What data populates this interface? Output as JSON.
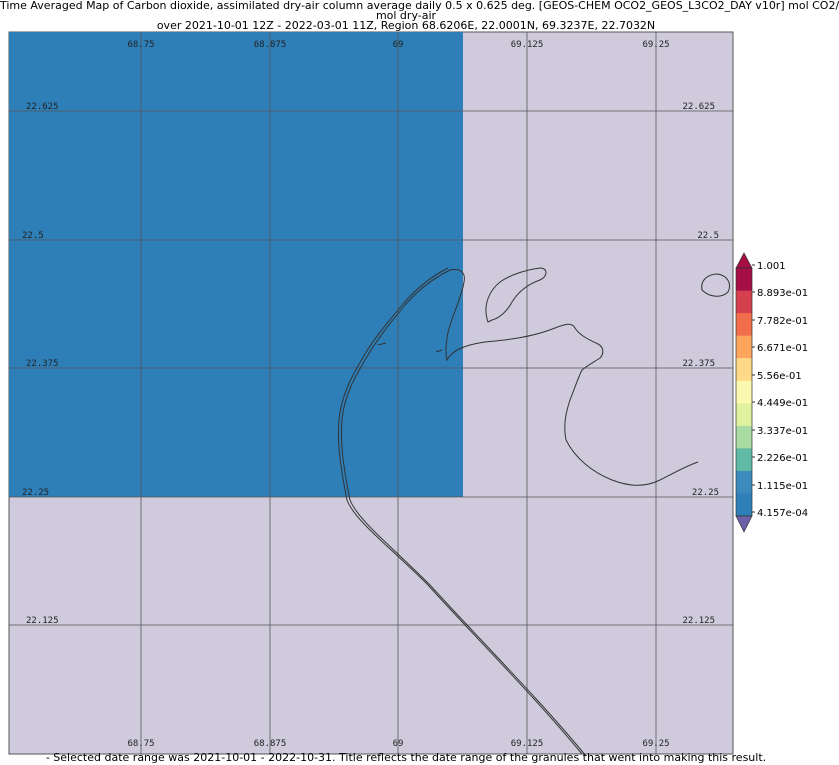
{
  "title": {
    "line1": "Time Averaged Map of Carbon dioxide, assimilated dry-air column average daily 0.5 x 0.625 deg. [GEOS-CHEM OCO2_GEOS_L3CO2_DAY v10r] mol CO2/",
    "line2": "mol dry-air",
    "line3": "over 2021-10-01 12Z - 2022-03-01 11Z, Region 68.6206E, 22.0001N, 69.3237E, 22.7032N"
  },
  "map": {
    "lon_range": [
      68.6206,
      69.3237
    ],
    "lat_range": [
      22.0001,
      22.7032
    ],
    "lon_ticks": [
      "68.75",
      "68.875",
      "69",
      "69.125",
      "69.25"
    ],
    "lat_ticks": [
      "22.625",
      "22.5",
      "22.375",
      "22.25",
      "22.125"
    ],
    "background_color": "#cfcbdc",
    "data_cell": {
      "lon": [
        68.6206,
        69.0625
      ],
      "lat": [
        22.25,
        22.7032
      ],
      "color": "#2e7fb8"
    }
  },
  "colorbar": {
    "labels": [
      "1.001",
      "8.893e-01",
      "7.782e-01",
      "6.671e-01",
      "5.56e-01",
      "4.449e-01",
      "3.337e-01",
      "2.226e-01",
      "1.115e-01",
      "4.157e-04"
    ],
    "colors": [
      "#a50f45",
      "#d6404e",
      "#f26d4a",
      "#fba45c",
      "#fed987",
      "#fbf8b0",
      "#e0f2a0",
      "#a9dba2",
      "#5fbaa6",
      "#3b8bbf",
      "#2e7fb8"
    ],
    "over_color": "#a50f45",
    "under_color": "#6d5fa8"
  },
  "footer": "- Selected date range was 2021-10-01 - 2022-10-31. Title reflects the date range of the granules that went into making this result."
}
